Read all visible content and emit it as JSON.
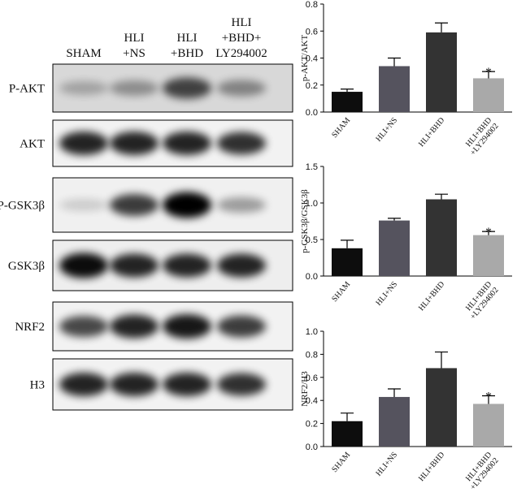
{
  "blot": {
    "lanes": [
      "SHAM",
      "HLI\n+NS",
      "HLI\n+BHD",
      "HLI\n+BHD+\nLY294002"
    ],
    "rows": [
      "P-AKT",
      "AKT",
      "P-GSK3β",
      "GSK3β",
      "NRF2",
      "H3"
    ]
  },
  "chart_data": [
    {
      "type": "bar",
      "y_label": "p-AKT/AKT",
      "categories": [
        "SHAM",
        "HLI+NS",
        "HLI+BHD",
        "HLI+BHD\n+LY294002"
      ],
      "values": [
        0.15,
        0.34,
        0.59,
        0.25
      ],
      "errors": [
        0.02,
        0.06,
        0.07,
        0.05
      ],
      "significance": [
        null,
        null,
        null,
        "*"
      ],
      "colors": [
        "#0d0d0d",
        "#55535e",
        "#333333",
        "#a9a9a9"
      ],
      "ylim": [
        0,
        0.8
      ],
      "yticks": [
        {
          "value": 0,
          "label": "0.0"
        },
        0.2,
        0.4,
        0.6,
        0.8
      ]
    },
    {
      "type": "bar",
      "y_label": "p-GSK3β/GSK3β",
      "categories": [
        "SHAM",
        "HLI+NS",
        "HLI+BHD",
        "HLI+BHD\n+LY294002"
      ],
      "values": [
        0.38,
        0.76,
        1.05,
        0.56
      ],
      "errors": [
        0.11,
        0.03,
        0.07,
        0.05
      ],
      "significance": [
        null,
        null,
        null,
        "*"
      ],
      "colors": [
        "#0d0d0d",
        "#55535e",
        "#333333",
        "#a9a9a9"
      ],
      "ylim": [
        0,
        1.5
      ],
      "yticks": [
        {
          "value": 0,
          "label": "0.0"
        },
        0.5,
        {
          "value": 1,
          "label": "1.0"
        },
        1.5
      ]
    },
    {
      "type": "bar",
      "y_label": "NRF2/H3",
      "categories": [
        "SHAM",
        "HLI+NS",
        "HLI+BHD",
        "HLI+BHD\n+LY294002"
      ],
      "values": [
        0.22,
        0.43,
        0.68,
        0.37
      ],
      "errors": [
        0.07,
        0.07,
        0.14,
        0.07
      ],
      "significance": [
        null,
        null,
        null,
        "*"
      ],
      "colors": [
        "#0d0d0d",
        "#55535e",
        "#333333",
        "#a9a9a9"
      ],
      "ylim": [
        0,
        1
      ],
      "yticks": [
        {
          "value": 0,
          "label": "0.0"
        },
        0.2,
        0.4,
        0.6,
        0.8,
        {
          "value": 1,
          "label": "1.0"
        }
      ]
    }
  ]
}
